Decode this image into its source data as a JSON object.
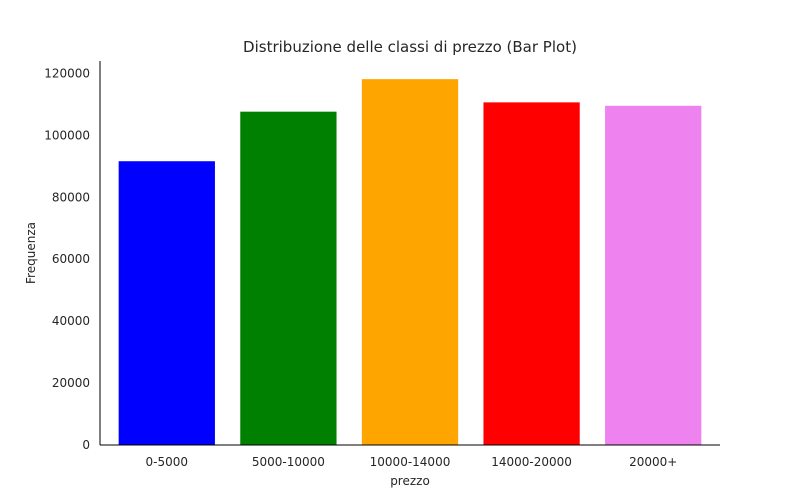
{
  "chart_data": {
    "type": "bar",
    "title": "Distribuzione delle classi di prezzo (Bar Plot)",
    "xlabel": "prezzo",
    "ylabel": "Frequenza",
    "categories": [
      "0-5000",
      "5000-10000",
      "10000-14000",
      "14000-20000",
      "20000+"
    ],
    "values": [
      91800,
      107800,
      118300,
      110800,
      109700
    ],
    "colors": [
      "#0000ff",
      "#008000",
      "#ffa500",
      "#ff0000",
      "#ee82ee"
    ],
    "ylim": [
      0,
      124000
    ],
    "yticks": [
      0,
      20000,
      40000,
      60000,
      80000,
      100000,
      120000
    ],
    "ytick_labels": [
      "0",
      "20000",
      "40000",
      "60000",
      "80000",
      "100000",
      "120000"
    ],
    "grid": false,
    "legend": false
  }
}
